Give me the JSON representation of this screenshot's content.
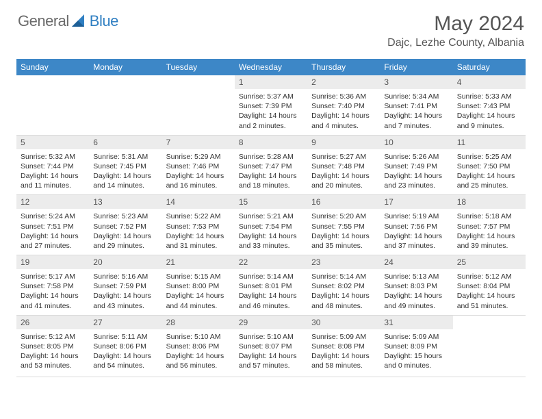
{
  "brand": {
    "part1": "General",
    "part2": "Blue"
  },
  "title": "May 2024",
  "location": "Dajc, Lezhe County, Albania",
  "colors": {
    "header_bg": "#3d87c7",
    "header_text": "#ffffff",
    "daynum_bg": "#ececec",
    "text": "#333333",
    "brand_gray": "#6b6b6b",
    "brand_blue": "#2f7fc2",
    "divider": "#d9d9d9"
  },
  "weekdays": [
    "Sunday",
    "Monday",
    "Tuesday",
    "Wednesday",
    "Thursday",
    "Friday",
    "Saturday"
  ],
  "weeks": [
    [
      null,
      null,
      null,
      {
        "n": "1",
        "sr": "5:37 AM",
        "ss": "7:39 PM",
        "dl": "14 hours and 2 minutes."
      },
      {
        "n": "2",
        "sr": "5:36 AM",
        "ss": "7:40 PM",
        "dl": "14 hours and 4 minutes."
      },
      {
        "n": "3",
        "sr": "5:34 AM",
        "ss": "7:41 PM",
        "dl": "14 hours and 7 minutes."
      },
      {
        "n": "4",
        "sr": "5:33 AM",
        "ss": "7:43 PM",
        "dl": "14 hours and 9 minutes."
      }
    ],
    [
      {
        "n": "5",
        "sr": "5:32 AM",
        "ss": "7:44 PM",
        "dl": "14 hours and 11 minutes."
      },
      {
        "n": "6",
        "sr": "5:31 AM",
        "ss": "7:45 PM",
        "dl": "14 hours and 14 minutes."
      },
      {
        "n": "7",
        "sr": "5:29 AM",
        "ss": "7:46 PM",
        "dl": "14 hours and 16 minutes."
      },
      {
        "n": "8",
        "sr": "5:28 AM",
        "ss": "7:47 PM",
        "dl": "14 hours and 18 minutes."
      },
      {
        "n": "9",
        "sr": "5:27 AM",
        "ss": "7:48 PM",
        "dl": "14 hours and 20 minutes."
      },
      {
        "n": "10",
        "sr": "5:26 AM",
        "ss": "7:49 PM",
        "dl": "14 hours and 23 minutes."
      },
      {
        "n": "11",
        "sr": "5:25 AM",
        "ss": "7:50 PM",
        "dl": "14 hours and 25 minutes."
      }
    ],
    [
      {
        "n": "12",
        "sr": "5:24 AM",
        "ss": "7:51 PM",
        "dl": "14 hours and 27 minutes."
      },
      {
        "n": "13",
        "sr": "5:23 AM",
        "ss": "7:52 PM",
        "dl": "14 hours and 29 minutes."
      },
      {
        "n": "14",
        "sr": "5:22 AM",
        "ss": "7:53 PM",
        "dl": "14 hours and 31 minutes."
      },
      {
        "n": "15",
        "sr": "5:21 AM",
        "ss": "7:54 PM",
        "dl": "14 hours and 33 minutes."
      },
      {
        "n": "16",
        "sr": "5:20 AM",
        "ss": "7:55 PM",
        "dl": "14 hours and 35 minutes."
      },
      {
        "n": "17",
        "sr": "5:19 AM",
        "ss": "7:56 PM",
        "dl": "14 hours and 37 minutes."
      },
      {
        "n": "18",
        "sr": "5:18 AM",
        "ss": "7:57 PM",
        "dl": "14 hours and 39 minutes."
      }
    ],
    [
      {
        "n": "19",
        "sr": "5:17 AM",
        "ss": "7:58 PM",
        "dl": "14 hours and 41 minutes."
      },
      {
        "n": "20",
        "sr": "5:16 AM",
        "ss": "7:59 PM",
        "dl": "14 hours and 43 minutes."
      },
      {
        "n": "21",
        "sr": "5:15 AM",
        "ss": "8:00 PM",
        "dl": "14 hours and 44 minutes."
      },
      {
        "n": "22",
        "sr": "5:14 AM",
        "ss": "8:01 PM",
        "dl": "14 hours and 46 minutes."
      },
      {
        "n": "23",
        "sr": "5:14 AM",
        "ss": "8:02 PM",
        "dl": "14 hours and 48 minutes."
      },
      {
        "n": "24",
        "sr": "5:13 AM",
        "ss": "8:03 PM",
        "dl": "14 hours and 49 minutes."
      },
      {
        "n": "25",
        "sr": "5:12 AM",
        "ss": "8:04 PM",
        "dl": "14 hours and 51 minutes."
      }
    ],
    [
      {
        "n": "26",
        "sr": "5:12 AM",
        "ss": "8:05 PM",
        "dl": "14 hours and 53 minutes."
      },
      {
        "n": "27",
        "sr": "5:11 AM",
        "ss": "8:06 PM",
        "dl": "14 hours and 54 minutes."
      },
      {
        "n": "28",
        "sr": "5:10 AM",
        "ss": "8:06 PM",
        "dl": "14 hours and 56 minutes."
      },
      {
        "n": "29",
        "sr": "5:10 AM",
        "ss": "8:07 PM",
        "dl": "14 hours and 57 minutes."
      },
      {
        "n": "30",
        "sr": "5:09 AM",
        "ss": "8:08 PM",
        "dl": "14 hours and 58 minutes."
      },
      {
        "n": "31",
        "sr": "5:09 AM",
        "ss": "8:09 PM",
        "dl": "15 hours and 0 minutes."
      },
      null
    ]
  ],
  "labels": {
    "sunrise": "Sunrise:",
    "sunset": "Sunset:",
    "daylight": "Daylight:"
  }
}
